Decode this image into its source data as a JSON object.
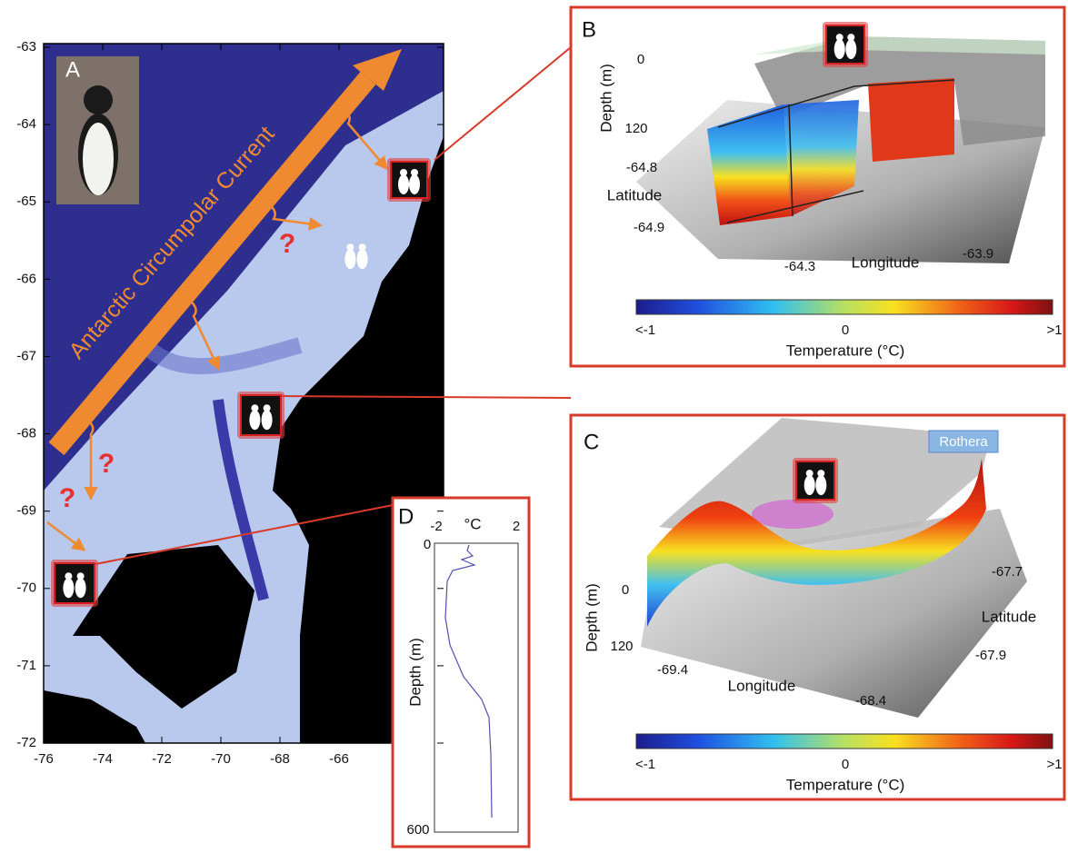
{
  "panel_a": {
    "label": "A",
    "current": "Antarctic Circumpolar Current",
    "yticks": [
      "-63",
      "-64",
      "-65",
      "-66",
      "-67",
      "-68",
      "-69",
      "-70",
      "-71",
      "-72"
    ],
    "xticks": [
      "-76",
      "-74",
      "-72",
      "-70",
      "-68",
      "-66"
    ],
    "question_marks": [
      "?",
      "?",
      "?"
    ]
  },
  "panel_b": {
    "label": "B",
    "depth_axis": {
      "title": "Depth (m)",
      "ticks": [
        "0",
        "120"
      ]
    },
    "latitude_axis": {
      "title": "Latitude",
      "ticks": [
        "-64.8",
        "-64.9"
      ]
    },
    "longitude_axis": {
      "title": "Longitude",
      "ticks": [
        "-64.3",
        "-63.9"
      ]
    },
    "colorbar": {
      "title": "Temperature (°C)",
      "ticks": [
        "<-1",
        "0",
        ">1"
      ]
    }
  },
  "panel_c": {
    "label": "C",
    "station": "Rothera",
    "depth_axis": {
      "title": "Depth (m)",
      "ticks": [
        "0",
        "120"
      ]
    },
    "latitude_axis": {
      "title": "Latitude",
      "ticks": [
        "-67.7",
        "-67.9"
      ]
    },
    "longitude_axis": {
      "title": "Longitude",
      "ticks": [
        "-69.4",
        "-68.4"
      ]
    },
    "colorbar": {
      "title": "Temperature (°C)",
      "ticks": [
        "<-1",
        "0",
        ">1"
      ]
    }
  },
  "panel_d": {
    "label": "D",
    "x_axis": {
      "unit": "°C",
      "ticks": [
        "-2",
        "2"
      ]
    },
    "y_axis": {
      "title": "Depth (m)",
      "ticks": [
        "0",
        "600"
      ]
    }
  }
}
